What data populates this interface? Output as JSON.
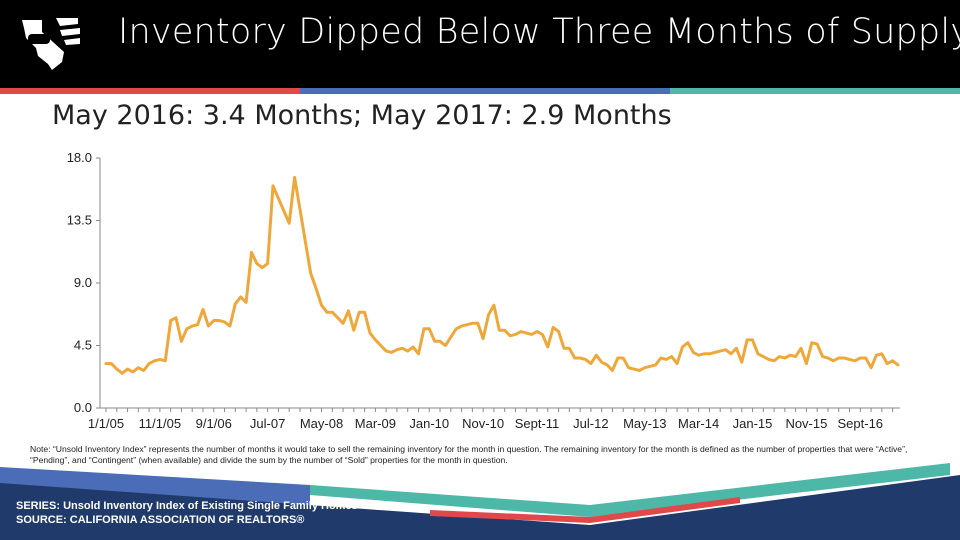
{
  "slide": {
    "title": "Inventory Dipped Below Three Months of Supply",
    "subtitle": "May 2016: 3.4 Months; May 2017: 2.9 Months",
    "note": "Note: “Unsold Inventory Index” represents the number of months it would take to sell the remaining inventory for the month in question. The remaining inventory for the month is defined as the number of properties that were “Active”, “Pending”, and “Contingent” (when available) and divide the sum by the number of “Sold” properties for the month in question.",
    "series_line": "SERIES: Unsold Inventory Index of Existing Single Family Homes",
    "source_line": "SOURCE:  CALIFORNIA ASSOCIATION OF REALTORS®",
    "logo_icon": "california-bear-logo-icon",
    "colors": {
      "header_bg": "#000000",
      "stripe_red": "#e0484a",
      "stripe_blue": "#4b6cb7",
      "stripe_teal": "#4db8a8",
      "line": "#f0a73a",
      "footer_navy": "#1f3a6b"
    }
  },
  "chart_data": {
    "type": "line",
    "title": "",
    "xlabel": "",
    "ylabel": "",
    "ylim": [
      0,
      18
    ],
    "yticks": [
      0.0,
      4.5,
      9.0,
      13.5,
      18.0
    ],
    "ytick_labels": [
      "0.0",
      "4.5",
      "9.0",
      "13.5",
      "18.0"
    ],
    "xtick_labels": [
      "1/1/05",
      "11/1/05",
      "9/1/06",
      "Jul-07",
      "May-08",
      "Mar-09",
      "Jan-10",
      "Nov-10",
      "Sept-11",
      "Jul-12",
      "May-13",
      "Mar-14",
      "Jan-15",
      "Nov-15",
      "Sept-16"
    ],
    "xtick_index": [
      0,
      10,
      20,
      30,
      40,
      50,
      60,
      70,
      80,
      90,
      100,
      110,
      120,
      130,
      140
    ],
    "grid": false,
    "legend": "none",
    "series": [
      {
        "color": "#f0a73a",
        "values": [
          3.2,
          3.2,
          2.8,
          2.5,
          2.8,
          2.6,
          2.9,
          2.7,
          3.2,
          3.4,
          3.5,
          3.4,
          6.3,
          6.5,
          4.8,
          5.7,
          5.9,
          6.0,
          7.1,
          5.9,
          6.3,
          6.3,
          6.2,
          5.9,
          7.5,
          8.0,
          7.6,
          11.2,
          10.4,
          10.1,
          10.4,
          16.0,
          15.1,
          14.2,
          13.3,
          16.6,
          14.3,
          12.0,
          9.7,
          8.6,
          7.4,
          6.9,
          6.9,
          6.5,
          6.1,
          7.0,
          5.6,
          6.9,
          6.9,
          5.4,
          4.9,
          4.5,
          4.1,
          4.0,
          4.2,
          4.3,
          4.1,
          4.4,
          3.9,
          5.7,
          5.7,
          4.8,
          4.8,
          4.5,
          5.1,
          5.7,
          5.9,
          6.0,
          6.1,
          6.1,
          5.0,
          6.7,
          7.4,
          5.6,
          5.6,
          5.2,
          5.3,
          5.5,
          5.4,
          5.3,
          5.5,
          5.3,
          4.4,
          5.8,
          5.5,
          4.3,
          4.3,
          3.6,
          3.6,
          3.5,
          3.2,
          3.8,
          3.3,
          3.1,
          2.7,
          3.6,
          3.6,
          2.9,
          2.8,
          2.7,
          2.9,
          3.0,
          3.1,
          3.6,
          3.5,
          3.7,
          3.2,
          4.4,
          4.7,
          4.0,
          3.8,
          3.9,
          3.9,
          4.0,
          4.1,
          4.2,
          3.9,
          4.3,
          3.3,
          4.9,
          4.9,
          3.9,
          3.7,
          3.5,
          3.4,
          3.7,
          3.6,
          3.8,
          3.7,
          4.3,
          3.2,
          4.7,
          4.6,
          3.7,
          3.6,
          3.4,
          3.6,
          3.6,
          3.5,
          3.4,
          3.6,
          3.6,
          2.9,
          3.8,
          3.9,
          3.2,
          3.4,
          3.1
        ]
      }
    ]
  }
}
